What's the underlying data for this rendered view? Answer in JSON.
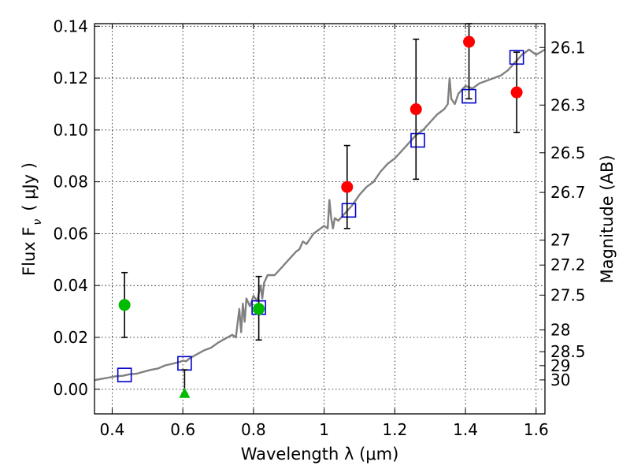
{
  "chart_data": {
    "type": "scatter",
    "xlabel": "Wavelength  λ (μm)",
    "ylabel": "Flux  F",
    "ylabel_subscript": "ν",
    "ylabel_unit": "( μJy )",
    "ylabel_right": "Magnitude (AB)",
    "xlim": [
      0.35,
      1.625
    ],
    "ylim": [
      -0.0095,
      0.141
    ],
    "x_ticks": [
      0.4,
      0.6,
      0.8,
      1.0,
      1.2,
      1.4,
      1.6
    ],
    "x_tick_labels": [
      "0.4",
      "0.6",
      "0.8",
      "1",
      "1.2",
      "1.4",
      "1.6"
    ],
    "y_ticks": [
      0.0,
      0.02,
      0.04,
      0.06,
      0.08,
      0.1,
      0.12,
      0.14
    ],
    "y_tick_labels": [
      "0.00",
      "0.02",
      "0.04",
      "0.06",
      "0.08",
      "0.10",
      "0.12",
      "0.14"
    ],
    "right_ticks": [
      {
        "label": "26.1",
        "flux": 0.1318
      },
      {
        "label": "26.3",
        "flux": 0.1096
      },
      {
        "label": "26.5",
        "flux": 0.0912
      },
      {
        "label": "26.7",
        "flux": 0.0759
      },
      {
        "label": "27",
        "flux": 0.0575
      },
      {
        "label": "27.2",
        "flux": 0.0479
      },
      {
        "label": "27.5",
        "flux": 0.0363
      },
      {
        "label": "28",
        "flux": 0.0229
      },
      {
        "label": "28.5",
        "flux": 0.0145
      },
      {
        "label": "29",
        "flux": 0.0091
      },
      {
        "label": "30",
        "flux": 0.0036
      }
    ],
    "grid": true,
    "colors": {
      "model": "#808080",
      "detection": "#ff0000",
      "green": "#00bb00",
      "model_box": "#0000cc",
      "errorbar": "#000000"
    },
    "series": [
      {
        "marker": "line",
        "x": [
          0.35,
          0.37,
          0.39,
          0.41,
          0.43,
          0.45,
          0.47,
          0.49,
          0.51,
          0.53,
          0.55,
          0.57,
          0.59,
          0.6,
          0.61,
          0.62,
          0.64,
          0.66,
          0.68,
          0.7,
          0.72,
          0.74,
          0.75,
          0.76,
          0.765,
          0.77,
          0.775,
          0.78,
          0.79,
          0.8,
          0.81,
          0.815,
          0.82,
          0.825,
          0.83,
          0.84,
          0.86,
          0.88,
          0.9,
          0.92,
          0.93,
          0.94,
          0.95,
          0.96,
          0.97,
          0.98,
          0.99,
          1.0,
          1.01,
          1.015,
          1.02,
          1.025,
          1.03,
          1.04,
          1.06,
          1.08,
          1.1,
          1.12,
          1.14,
          1.16,
          1.18,
          1.2,
          1.22,
          1.24,
          1.26,
          1.28,
          1.3,
          1.32,
          1.34,
          1.35,
          1.355,
          1.36,
          1.37,
          1.38,
          1.4,
          1.42,
          1.44,
          1.46,
          1.48,
          1.5,
          1.52,
          1.54,
          1.56,
          1.58,
          1.6,
          1.625
        ],
        "y": [
          0.0035,
          0.004,
          0.0045,
          0.005,
          0.0052,
          0.0058,
          0.006,
          0.0068,
          0.0075,
          0.008,
          0.0092,
          0.0098,
          0.0105,
          0.011,
          0.0108,
          0.012,
          0.0135,
          0.015,
          0.016,
          0.018,
          0.0195,
          0.021,
          0.02,
          0.031,
          0.022,
          0.033,
          0.026,
          0.035,
          0.032,
          0.036,
          0.034,
          0.037,
          0.04,
          0.035,
          0.041,
          0.044,
          0.044,
          0.047,
          0.05,
          0.053,
          0.054,
          0.057,
          0.056,
          0.058,
          0.06,
          0.061,
          0.062,
          0.063,
          0.062,
          0.073,
          0.066,
          0.062,
          0.066,
          0.065,
          0.068,
          0.071,
          0.075,
          0.078,
          0.08,
          0.084,
          0.087,
          0.089,
          0.092,
          0.095,
          0.098,
          0.1,
          0.103,
          0.106,
          0.108,
          0.11,
          0.12,
          0.112,
          0.11,
          0.114,
          0.117,
          0.116,
          0.118,
          0.119,
          0.12,
          0.121,
          0.123,
          0.126,
          0.129,
          0.131,
          0.129,
          0.131
        ]
      },
      {
        "marker": "square",
        "x": [
          0.435,
          0.605,
          0.815,
          1.07,
          1.265,
          1.41,
          1.545
        ],
        "y": [
          0.0055,
          0.01,
          0.0315,
          0.069,
          0.096,
          0.113,
          0.128
        ]
      },
      {
        "marker": "circle",
        "x": [
          1.065,
          1.26,
          1.41,
          1.545
        ],
        "y": [
          0.078,
          0.108,
          0.134,
          0.1145
        ],
        "err_low": [
          0.062,
          0.081,
          0.112,
          0.099
        ],
        "err_high": [
          0.094,
          0.135,
          0.141,
          0.13
        ]
      },
      {
        "marker": "circle",
        "x": [
          0.435,
          0.815
        ],
        "y": [
          0.0325,
          0.031
        ],
        "err_low": [
          0.02,
          0.019
        ],
        "err_high": [
          0.045,
          0.0435
        ]
      },
      {
        "marker": "triangle",
        "x": [
          0.605
        ],
        "y": [
          -0.0015
        ],
        "err_low": [
          -0.0015
        ],
        "err_high": [
          0.0075
        ]
      }
    ]
  }
}
